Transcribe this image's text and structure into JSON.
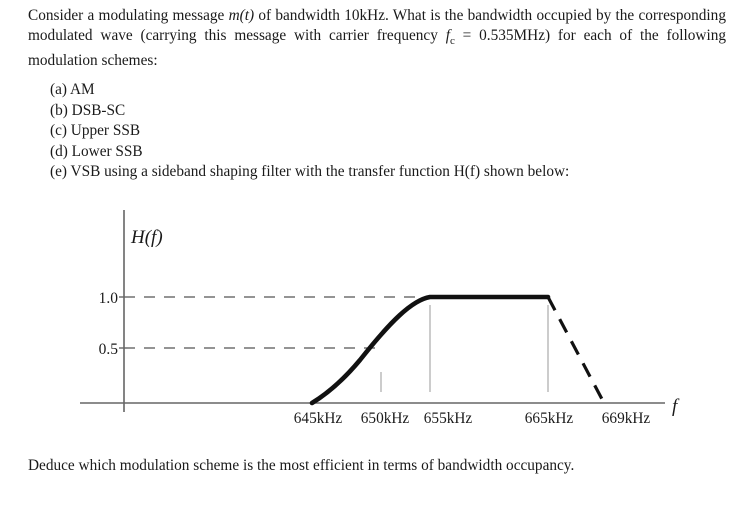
{
  "question": {
    "intro_part1": "Consider a modulating message ",
    "intro_msg": "m(t)",
    "intro_part2": " of bandwidth 10kHz. What is the bandwidth occupied by the corresponding modulated wave (carrying this message with carrier frequency ",
    "intro_fc": "f",
    "intro_fc_sub": "c",
    "intro_part3": " = 0.535MHz) for each of the following modulation schemes:",
    "options": [
      "(a) AM",
      "(b) DSB-SC",
      "(c) Upper SSB",
      "(d) Lower SSB",
      "(e) VSB using a sideband shaping filter with the transfer function H(f) shown below:"
    ],
    "closing": "Deduce which modulation scheme is the most efficient in terms of bandwidth occupancy."
  },
  "figure": {
    "y_label": "H(f)",
    "y_ticks": [
      "1.0",
      "0.5"
    ],
    "x_ticks": [
      "645kHz",
      "650kHz",
      "655kHz",
      "665kHz",
      "669kHz"
    ],
    "x_axis_symbol": "f"
  }
}
